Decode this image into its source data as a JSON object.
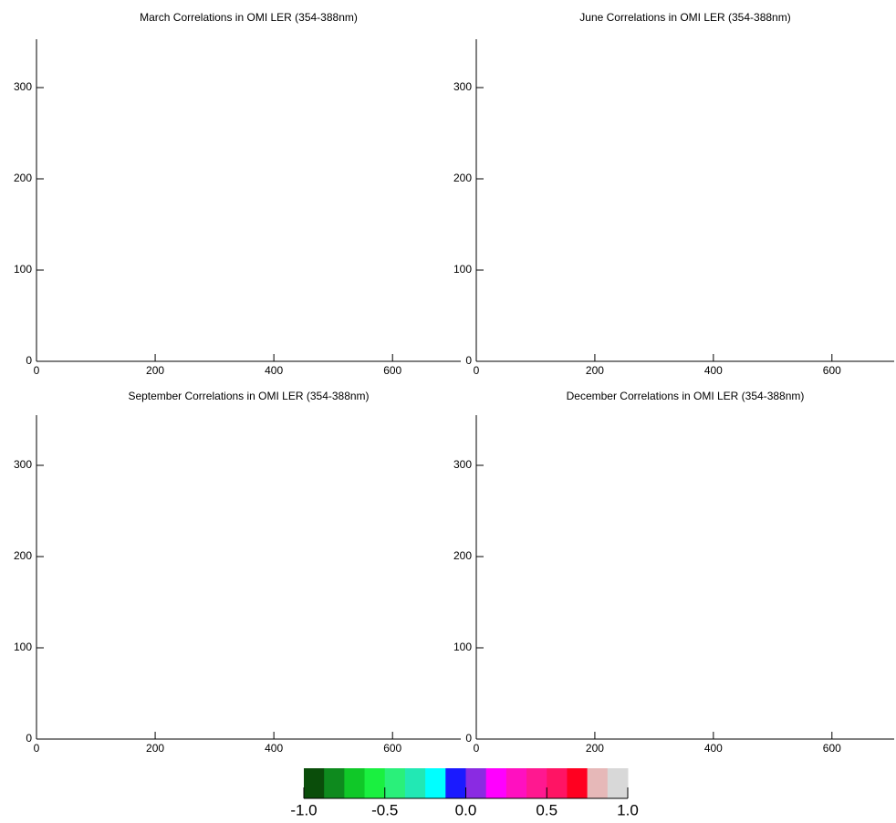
{
  "chart_data": [
    {
      "type": "heatmap",
      "title": "March Correlations in OMI LER (354-388nm)",
      "xlim": [
        0,
        715
      ],
      "ylim": [
        0,
        353
      ],
      "xticks": [
        0,
        200,
        400,
        600
      ],
      "yticks": [
        0,
        100,
        200,
        300
      ]
    },
    {
      "type": "heatmap",
      "title": "June Correlations in OMI LER (354-388nm)",
      "xlim": [
        0,
        705
      ],
      "ylim": [
        0,
        353
      ],
      "xticks": [
        0,
        200,
        400,
        600
      ],
      "yticks": [
        0,
        100,
        200,
        300
      ]
    },
    {
      "type": "heatmap",
      "title": "September Correlations in OMI LER (354-388nm)",
      "xlim": [
        0,
        715
      ],
      "ylim": [
        0,
        355
      ],
      "xticks": [
        0,
        200,
        400,
        600
      ],
      "yticks": [
        0,
        100,
        200,
        300
      ]
    },
    {
      "type": "heatmap",
      "title": "December Correlations in OMI LER (354-388nm)",
      "xlim": [
        0,
        705
      ],
      "ylim": [
        0,
        355
      ],
      "xticks": [
        0,
        200,
        400,
        600
      ],
      "yticks": [
        0,
        100,
        200,
        300
      ]
    }
  ],
  "colorbar": {
    "range": [
      -1,
      1
    ],
    "colors": [
      "#0a4d0a",
      "#0e8a1e",
      "#10c828",
      "#1af040",
      "#2af07a",
      "#22e8b4",
      "#00ffff",
      "#1a1aff",
      "#8a2be2",
      "#ff00ff",
      "#ff10c0",
      "#ff1890",
      "#ff1464",
      "#ff0020",
      "#e6b8b8",
      "#d8d8d8"
    ],
    "ticks": [
      {
        "value": -1,
        "label": "-1.0"
      },
      {
        "value": -0.5,
        "label": "-0.5"
      },
      {
        "value": 0,
        "label": "0.0"
      },
      {
        "value": 0.5,
        "label": "0.5"
      },
      {
        "value": 1,
        "label": "1.0"
      }
    ]
  }
}
